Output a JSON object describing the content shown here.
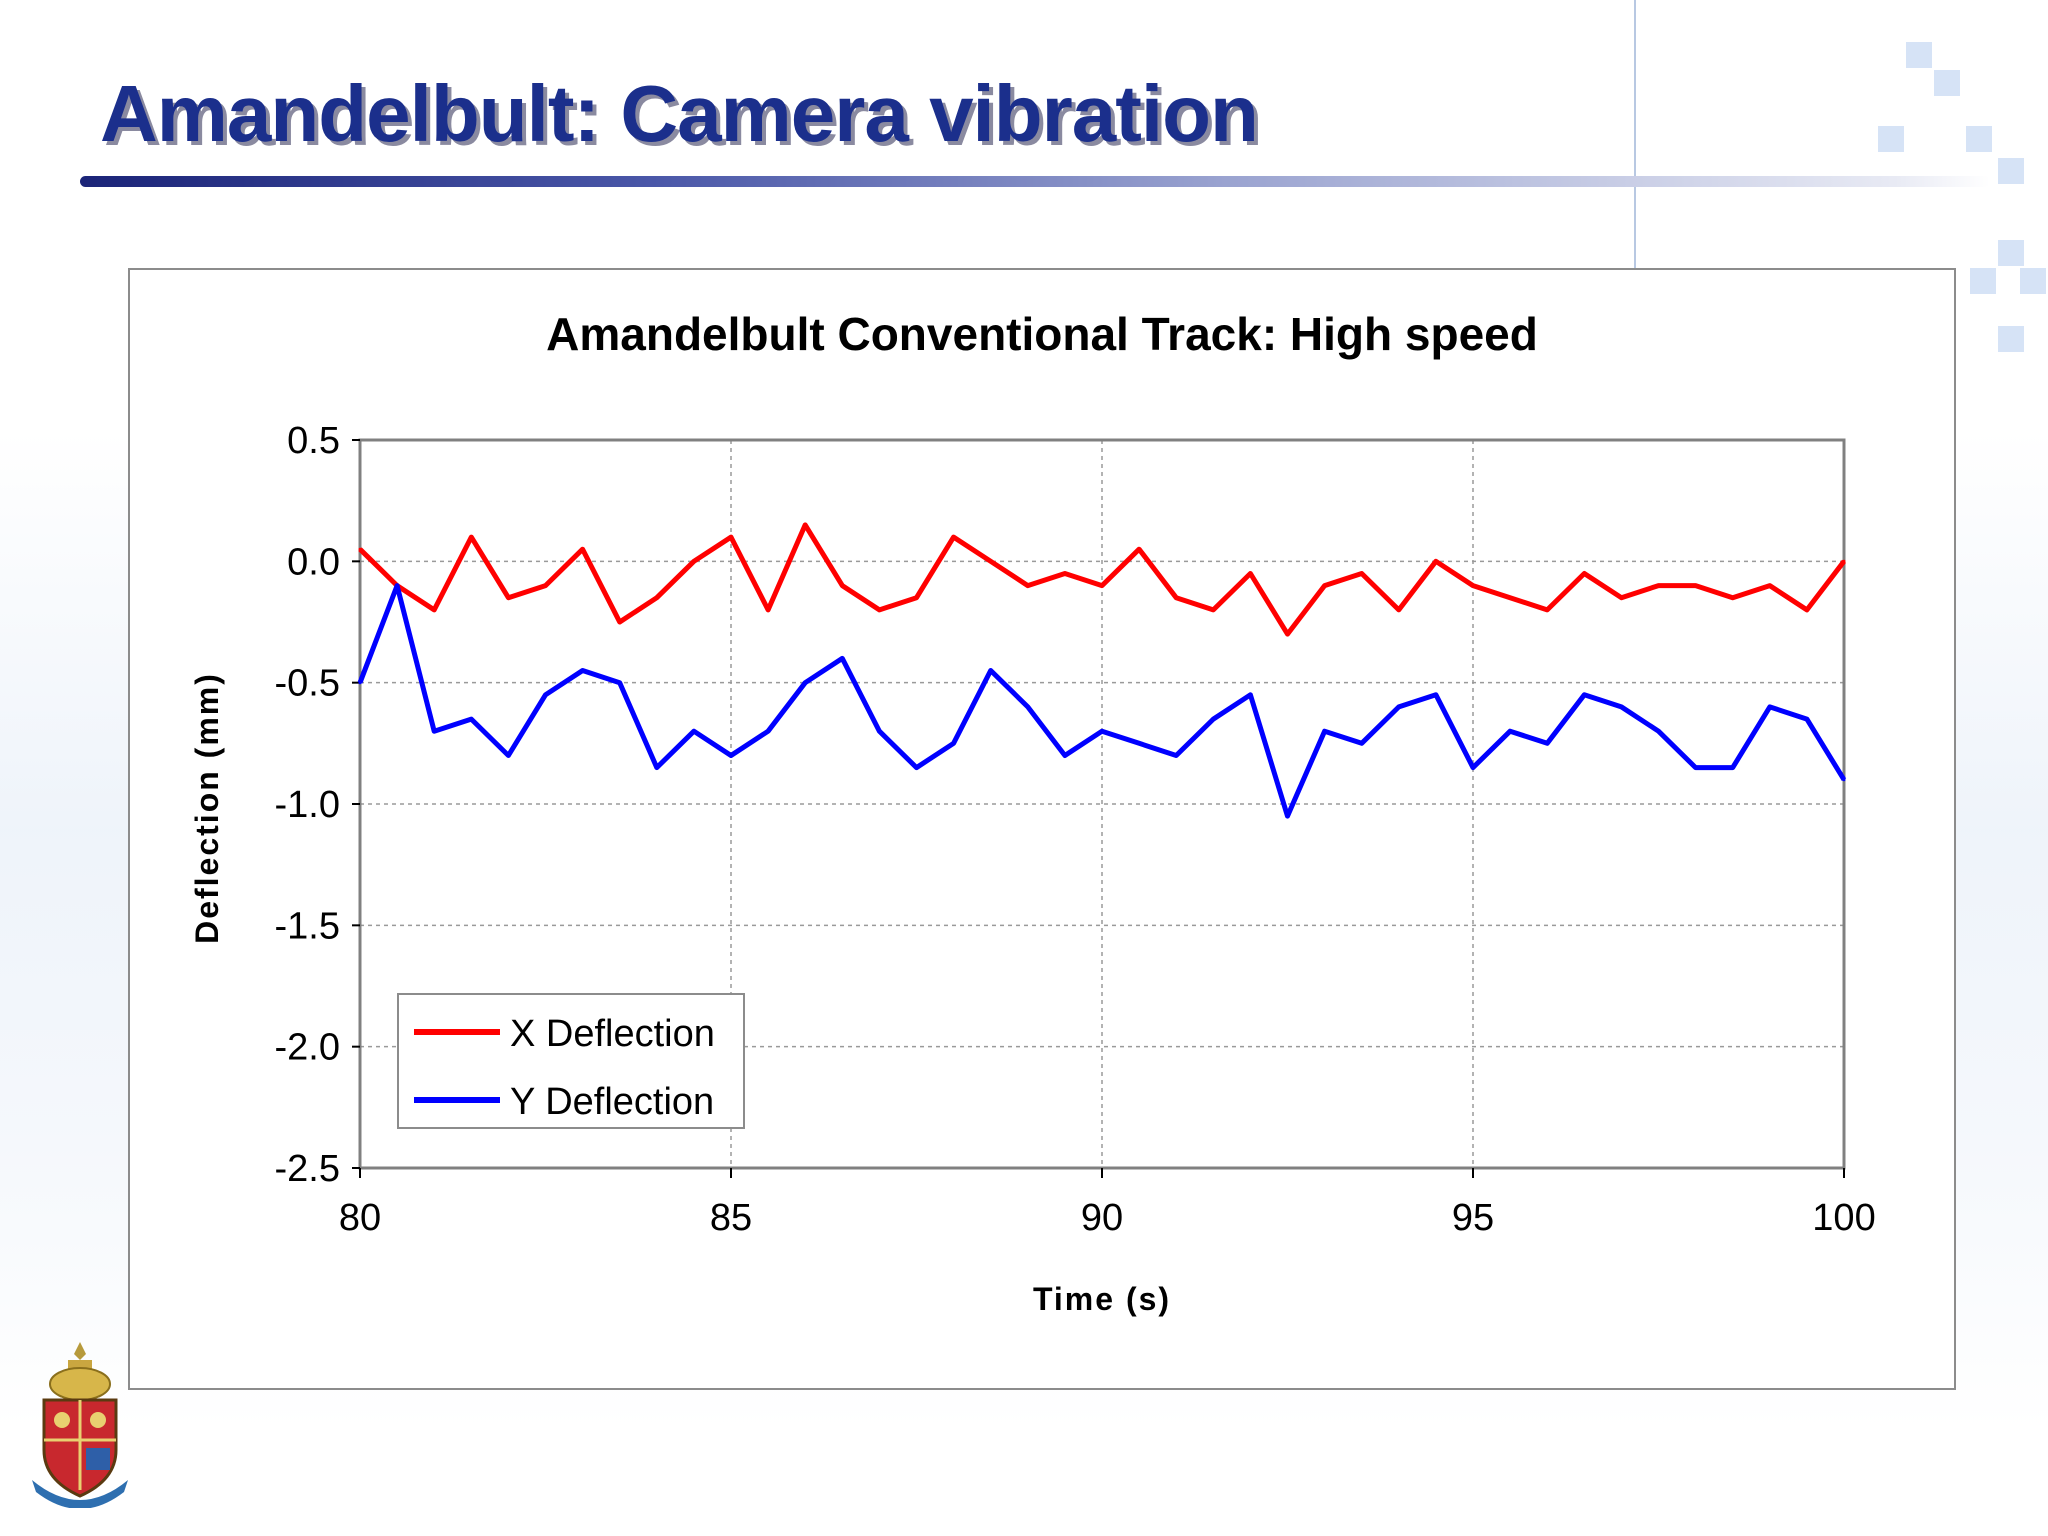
{
  "slide": {
    "title": "Amandelbult: Camera vibration"
  },
  "colors": {
    "title": "#1b2f8c",
    "x_series": "#ff0000",
    "y_series": "#0000ff"
  },
  "chart_data": {
    "type": "line",
    "title": "Amandelbult Conventional Track: High speed",
    "xlabel": "Time (s)",
    "ylabel": "Deflection (mm)",
    "xlim": [
      80,
      100
    ],
    "ylim": [
      -2.5,
      0.5
    ],
    "xticks": [
      "80",
      "85",
      "90",
      "95",
      "100"
    ],
    "yticks": [
      "0.5",
      "0.0",
      "-0.5",
      "-1.0",
      "-1.5",
      "-2.0",
      "-2.5"
    ],
    "grid": true,
    "legend_position": "bottom-left",
    "series": [
      {
        "name": "X Deflection",
        "color": "#ff0000",
        "x": [
          80,
          80.5,
          81,
          81.5,
          82,
          82.5,
          83,
          83.5,
          84,
          84.5,
          85,
          85.5,
          86,
          86.5,
          87,
          87.5,
          88,
          88.5,
          89,
          89.5,
          90,
          90.5,
          91,
          91.5,
          92,
          92.5,
          93,
          93.5,
          94,
          94.5,
          95,
          95.5,
          96,
          96.5,
          97,
          97.5,
          98,
          98.5,
          99,
          99.5,
          100
        ],
        "values": [
          0.05,
          -0.1,
          -0.2,
          0.1,
          -0.15,
          -0.1,
          0.05,
          -0.25,
          -0.15,
          0.0,
          0.1,
          -0.2,
          0.15,
          -0.1,
          -0.2,
          -0.15,
          0.1,
          0.0,
          -0.1,
          -0.05,
          -0.1,
          0.05,
          -0.15,
          -0.2,
          -0.05,
          -0.3,
          -0.1,
          -0.05,
          -0.2,
          0.0,
          -0.1,
          -0.15,
          -0.2,
          -0.05,
          -0.15,
          -0.1,
          -0.1,
          -0.15,
          -0.1,
          -0.2,
          0.0
        ]
      },
      {
        "name": "Y Deflection",
        "color": "#0000ff",
        "x": [
          80,
          80.5,
          81,
          81.5,
          82,
          82.5,
          83,
          83.5,
          84,
          84.5,
          85,
          85.5,
          86,
          86.5,
          87,
          87.5,
          88,
          88.5,
          89,
          89.5,
          90,
          90.5,
          91,
          91.5,
          92,
          92.5,
          93,
          93.5,
          94,
          94.5,
          95,
          95.5,
          96,
          96.5,
          97,
          97.5,
          98,
          98.5,
          99,
          99.5,
          100
        ],
        "values": [
          -0.5,
          -0.1,
          -0.7,
          -0.65,
          -0.8,
          -0.55,
          -0.45,
          -0.5,
          -0.85,
          -0.7,
          -0.8,
          -0.7,
          -0.5,
          -0.4,
          -0.7,
          -0.85,
          -0.75,
          -0.45,
          -0.6,
          -0.8,
          -0.7,
          -0.75,
          -0.8,
          -0.65,
          -0.55,
          -1.05,
          -0.7,
          -0.75,
          -0.6,
          -0.55,
          -0.85,
          -0.7,
          -0.75,
          -0.55,
          -0.6,
          -0.7,
          -0.85,
          -0.85,
          -0.6,
          -0.65,
          -0.9
        ]
      }
    ]
  }
}
